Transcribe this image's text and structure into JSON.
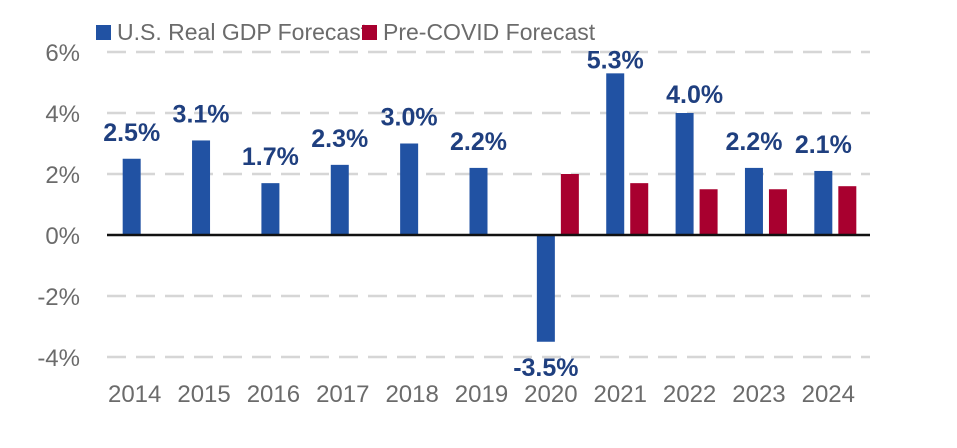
{
  "chart_data": {
    "type": "bar",
    "title": "",
    "xlabel": "",
    "ylabel": "",
    "categories": [
      "2014",
      "2015",
      "2016",
      "2017",
      "2018",
      "2019",
      "2020",
      "2021",
      "2022",
      "2023",
      "2024"
    ],
    "series": [
      {
        "name": "U.S. Real GDP Forecast",
        "color": "#2152a3",
        "values": [
          2.5,
          3.1,
          1.7,
          2.3,
          3.0,
          2.2,
          -3.5,
          5.3,
          4.0,
          2.2,
          2.1
        ],
        "labels": [
          "2.5%",
          "3.1%",
          "1.7%",
          "2.3%",
          "3.0%",
          "2.2%",
          "-3.5%",
          "5.3%",
          "4.0%",
          "2.2%",
          "2.1%"
        ]
      },
      {
        "name": "Pre-COVID Forecast",
        "color": "#a8002f",
        "values": [
          null,
          null,
          null,
          null,
          null,
          null,
          2.0,
          1.7,
          1.5,
          1.5,
          1.6
        ]
      }
    ],
    "ylim": [
      -4,
      6
    ],
    "yticks": [
      6,
      4,
      2,
      0,
      -2,
      -4
    ],
    "ytick_labels": [
      "6%",
      "4%",
      "2%",
      "0%",
      "-2%",
      "-4%"
    ],
    "grid": "horizontal-dashed",
    "legend": "top-left"
  }
}
